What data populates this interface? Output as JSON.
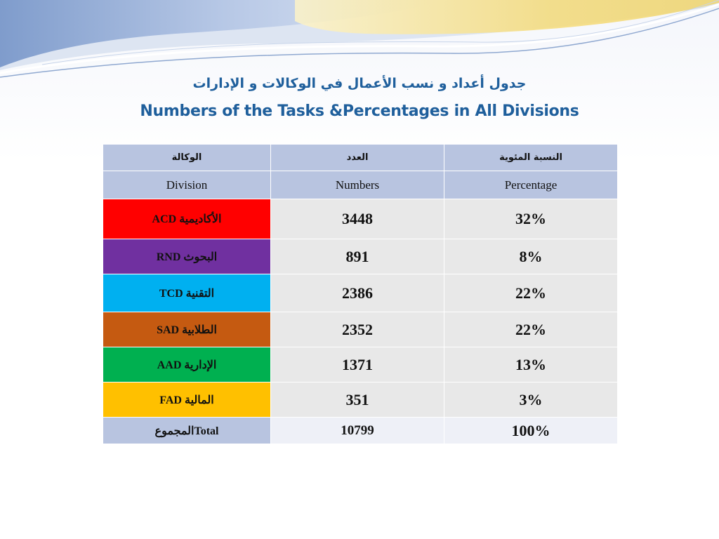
{
  "title_arabic": "جدول أعداد و نسب الأعمال في الوكالات و الإدارات",
  "title_english": "Numbers  of the Tasks &Percentages in All Divisions",
  "table": {
    "header_arabic": [
      "الوكالة",
      "العدد",
      "النسبة المئوية"
    ],
    "header_english": [
      "Division",
      "Numbers",
      "Percentage"
    ],
    "rows": [
      {
        "division": "ACD الأكاديمية",
        "number": "3448",
        "percentage": "32%",
        "color": "#ff0000"
      },
      {
        "division": "RND البحوث",
        "number": "891",
        "percentage": "8%",
        "color": "#7030a0"
      },
      {
        "division": "TCD التقنية",
        "number": "2386",
        "percentage": "22%",
        "color": "#00b0f0"
      },
      {
        "division": "SAD  الطلابية",
        "number": "2352",
        "percentage": "22%",
        "color": "#c55a11"
      },
      {
        "division": "AAD   الإدارية",
        "number": "1371",
        "percentage": "13%",
        "color": "#00b050"
      },
      {
        "division": "FAD المالية",
        "number": "351",
        "percentage": "3%",
        "color": "#ffc000"
      }
    ],
    "total": {
      "label": "المجموعTotal",
      "number": "10799",
      "percentage": "100%"
    }
  }
}
